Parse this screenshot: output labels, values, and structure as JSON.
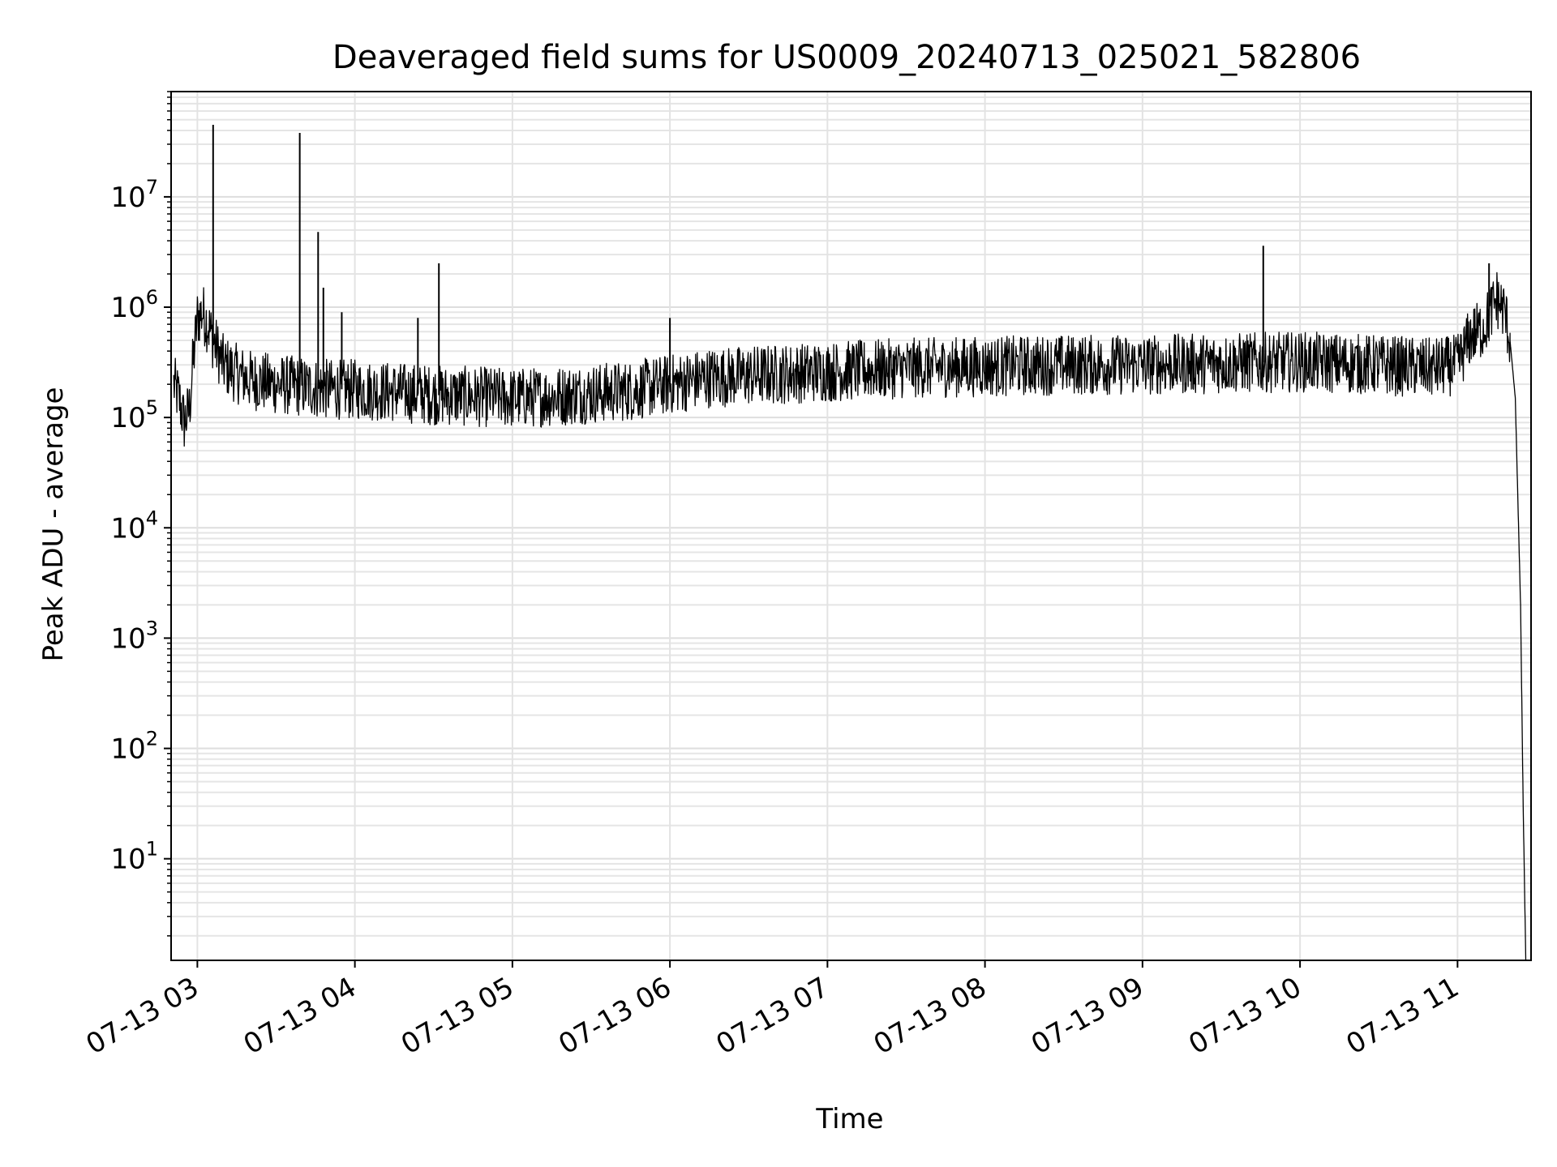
{
  "chart_data": {
    "type": "line",
    "title": "Deaveraged field sums for US0009_20240713_025021_582806",
    "xlabel": "Time",
    "ylabel": "Peak ADU - average",
    "y_scale": "log",
    "ylim": [
      1.2,
      90000000
    ],
    "xlim": [
      "2024-07-13 02:50",
      "2024-07-13 11:28"
    ],
    "grid": true,
    "x_ticks": [
      "07-13 03",
      "07-13 04",
      "07-13 05",
      "07-13 06",
      "07-13 07",
      "07-13 08",
      "07-13 09",
      "07-13 10",
      "07-13 11"
    ],
    "y_ticks": [
      {
        "base": "10",
        "exp": "1",
        "value": 10
      },
      {
        "base": "10",
        "exp": "2",
        "value": 100
      },
      {
        "base": "10",
        "exp": "3",
        "value": 1000
      },
      {
        "base": "10",
        "exp": "4",
        "value": 10000
      },
      {
        "base": "10",
        "exp": "5",
        "value": 100000
      },
      {
        "base": "10",
        "exp": "6",
        "value": 1000000
      },
      {
        "base": "10",
        "exp": "7",
        "value": 10000000
      }
    ],
    "series": [
      {
        "color": "#000000",
        "x": [
          "2024-07-13 02:51",
          "2024-07-13 02:53",
          "2024-07-13 02:55",
          "2024-07-13 02:57",
          "2024-07-13 02:58",
          "2024-07-13 03:00",
          "2024-07-13 03:02",
          "2024-07-13 03:04",
          "2024-07-13 03:06",
          "2024-07-13 03:10",
          "2024-07-13 03:15",
          "2024-07-13 03:20",
          "2024-07-13 03:30",
          "2024-07-13 03:40",
          "2024-07-13 03:50",
          "2024-07-13 04:00",
          "2024-07-13 04:15",
          "2024-07-13 04:30",
          "2024-07-13 04:45",
          "2024-07-13 05:00",
          "2024-07-13 05:15",
          "2024-07-13 05:30",
          "2024-07-13 05:45",
          "2024-07-13 06:00",
          "2024-07-13 06:15",
          "2024-07-13 06:30",
          "2024-07-13 06:45",
          "2024-07-13 07:00",
          "2024-07-13 07:30",
          "2024-07-13 08:00",
          "2024-07-13 08:30",
          "2024-07-13 09:00",
          "2024-07-13 09:30",
          "2024-07-13 10:00",
          "2024-07-13 10:30",
          "2024-07-13 10:50",
          "2024-07-13 11:00",
          "2024-07-13 11:05",
          "2024-07-13 11:10",
          "2024-07-13 11:15",
          "2024-07-13 11:18",
          "2024-07-13 11:20",
          "2024-07-13 11:22",
          "2024-07-13 11:24",
          "2024-07-13 11:25",
          "2024-07-13 11:26"
        ],
        "y": [
          200000,
          150000,
          90000,
          120000,
          250000,
          800000,
          900000,
          700000,
          500000,
          300000,
          250000,
          220000,
          200000,
          190000,
          180000,
          180000,
          170000,
          160000,
          155000,
          150000,
          155000,
          165000,
          175000,
          200000,
          230000,
          240000,
          250000,
          260000,
          280000,
          290000,
          300000,
          300000,
          310000,
          320000,
          300000,
          280000,
          300000,
          550000,
          650000,
          1200000,
          900000,
          500000,
          150000,
          2000,
          30,
          1.2
        ]
      }
    ],
    "spikes": [
      {
        "x": "2024-07-13 03:06",
        "y": 45000000
      },
      {
        "x": "2024-07-13 03:39",
        "y": 38000000
      },
      {
        "x": "2024-07-13 03:46",
        "y": 4800000
      },
      {
        "x": "2024-07-13 03:48",
        "y": 1500000
      },
      {
        "x": "2024-07-13 03:55",
        "y": 900000
      },
      {
        "x": "2024-07-13 04:24",
        "y": 800000
      },
      {
        "x": "2024-07-13 04:32",
        "y": 2500000
      },
      {
        "x": "2024-07-13 06:00",
        "y": 800000
      },
      {
        "x": "2024-07-13 09:46",
        "y": 3600000
      },
      {
        "x": "2024-07-13 11:12",
        "y": 2500000
      }
    ]
  }
}
